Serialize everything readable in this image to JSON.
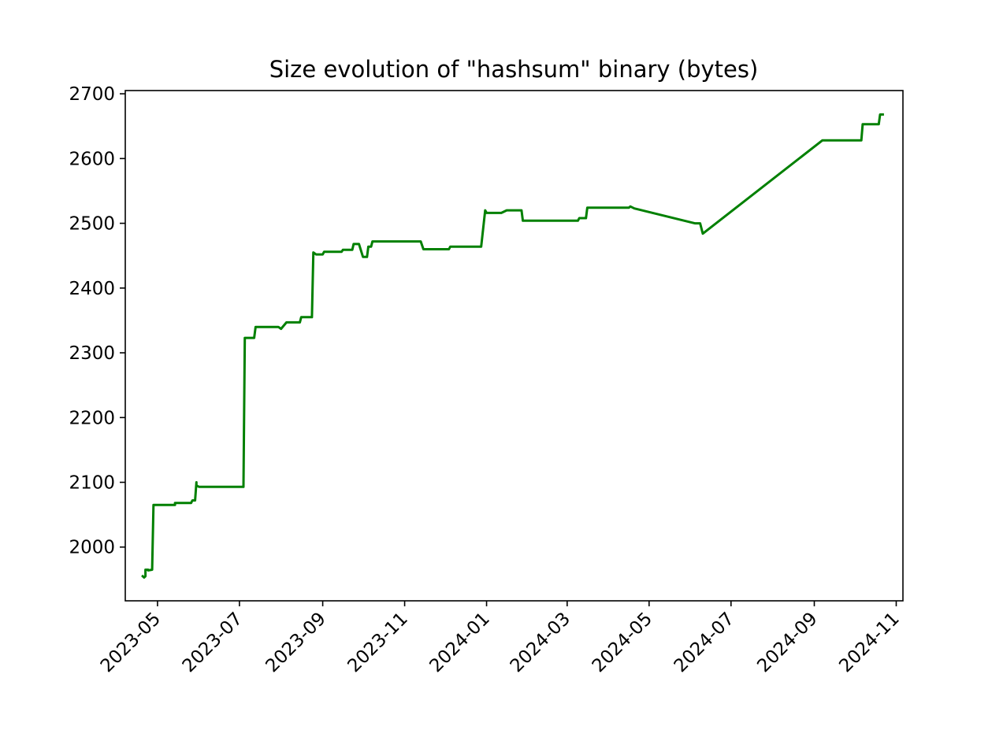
{
  "chart_data": {
    "type": "line",
    "title": "Size evolution of \"hashsum\" binary (bytes)",
    "xlabel": "",
    "ylabel": "",
    "x_axis_type": "date",
    "xlim": [
      "2023-04-07",
      "2024-11-06"
    ],
    "ylim": [
      1917,
      2705
    ],
    "yticks": [
      2000,
      2100,
      2200,
      2300,
      2400,
      2500,
      2600,
      2700
    ],
    "xticks": [
      "2023-05",
      "2023-07",
      "2023-09",
      "2023-11",
      "2024-01",
      "2024-03",
      "2024-05",
      "2024-07",
      "2024-09",
      "2024-11"
    ],
    "grid": false,
    "legend": "none",
    "color": "#008000",
    "series": [
      {
        "x": [
          "2023-04-20",
          "2023-04-21",
          "2023-04-22",
          "2023-04-22",
          "2023-04-24",
          "2023-04-24",
          "2023-04-27",
          "2023-04-28",
          "2023-05-14",
          "2023-05-14",
          "2023-05-26",
          "2023-05-27",
          "2023-05-29",
          "2023-05-30",
          "2023-05-30",
          "2023-06-01",
          "2023-06-02",
          "2023-07-04",
          "2023-07-05",
          "2023-07-12",
          "2023-07-13",
          "2023-07-30",
          "2023-08-01",
          "2023-08-05",
          "2023-08-15",
          "2023-08-16",
          "2023-08-24",
          "2023-08-25",
          "2023-08-27",
          "2023-08-27",
          "2023-09-01",
          "2023-09-02",
          "2023-09-15",
          "2023-09-16",
          "2023-09-23",
          "2023-09-24",
          "2023-09-28",
          "2023-10-01",
          "2023-10-04",
          "2023-10-05",
          "2023-10-07",
          "2023-10-08",
          "2023-10-11",
          "2023-10-12",
          "2023-11-13",
          "2023-11-15",
          "2023-12-04",
          "2023-12-05",
          "2023-12-27",
          "2023-12-28",
          "2023-12-31",
          "2024-01-01",
          "2024-01-12",
          "2024-01-16",
          "2024-01-27",
          "2024-01-28",
          "2024-03-09",
          "2024-03-10",
          "2024-03-15",
          "2024-03-16",
          "2024-04-16",
          "2024-04-17",
          "2024-04-20",
          "2024-06-04",
          "2024-06-08",
          "2024-06-10",
          "2024-09-07",
          "2024-10-06",
          "2024-10-07",
          "2024-10-19",
          "2024-10-20",
          "2024-10-22"
        ],
        "y": [
          1955,
          1953,
          1955,
          1965,
          1965,
          1964,
          1965,
          2065,
          2065,
          2068,
          2068,
          2072,
          2072,
          2100,
          2095,
          2093,
          2093,
          2093,
          2323,
          2323,
          2340,
          2340,
          2337,
          2347,
          2347,
          2355,
          2355,
          2455,
          2452,
          2452,
          2452,
          2456,
          2456,
          2459,
          2459,
          2468,
          2468,
          2448,
          2448,
          2464,
          2464,
          2472,
          2472,
          2472,
          2472,
          2460,
          2460,
          2464,
          2464,
          2464,
          2520,
          2516,
          2516,
          2520,
          2520,
          2504,
          2504,
          2508,
          2508,
          2524,
          2524,
          2526,
          2523,
          2500,
          2500,
          2484,
          2628,
          2628,
          2653,
          2653,
          2668,
          2668
        ]
      }
    ]
  }
}
